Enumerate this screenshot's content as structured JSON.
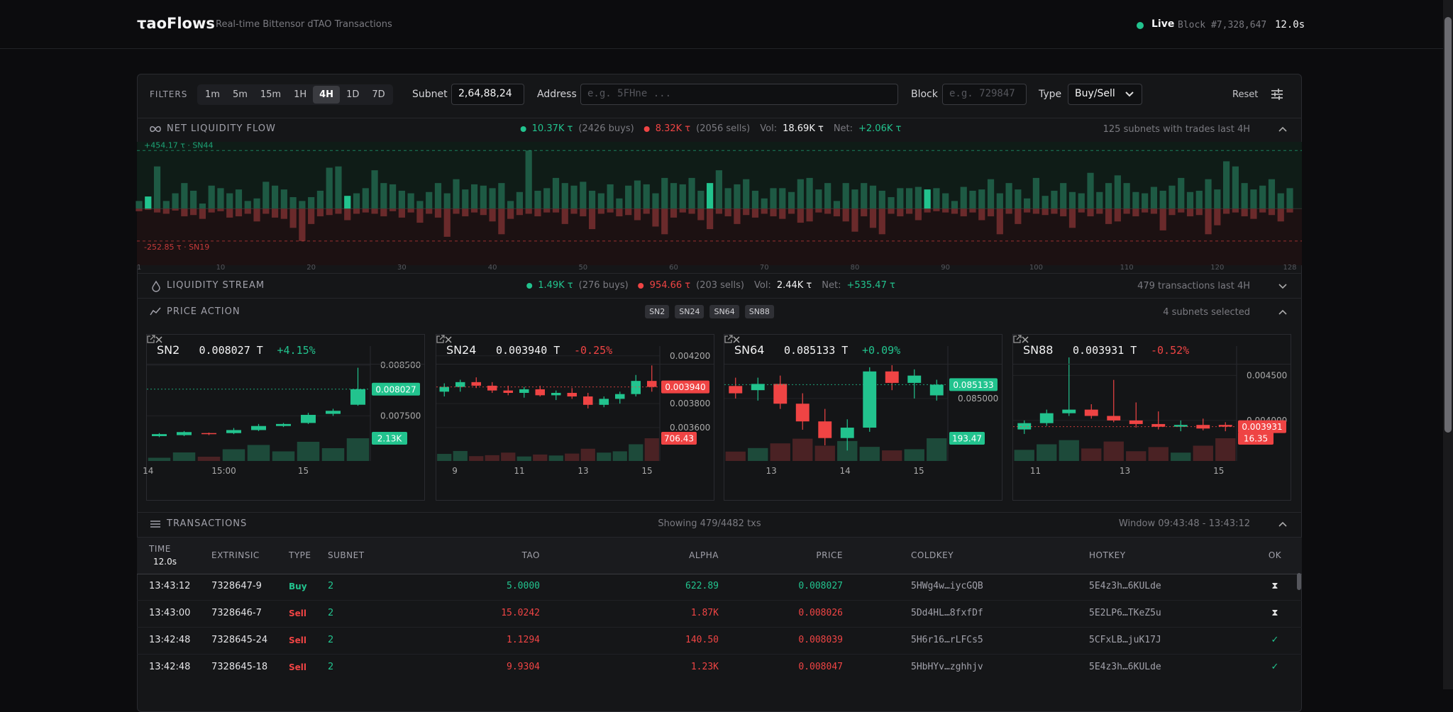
{
  "header": {
    "logo": "τaoFlows",
    "subtitle": "Real-time Bittensor dTAO Transactions",
    "status": "Live",
    "block": "Block #7,328,647",
    "timer": "12.0s"
  },
  "filters": {
    "label": "FILTERS",
    "ranges": [
      "1m",
      "5m",
      "15m",
      "1H",
      "4H",
      "1D",
      "7D"
    ],
    "active": "4H",
    "subnet_label": "Subnet",
    "subnet_value": "2,64,88,24",
    "address_label": "Address",
    "address_placeholder": "e.g. 5FHne ...",
    "block_label": "Block",
    "block_placeholder": "e.g. 729847",
    "type_label": "Type",
    "type_value": "Buy/Sell",
    "reset": "Reset"
  },
  "net_flow": {
    "title": "NET LIQUIDITY FLOW",
    "buys": "10.37K τ",
    "buys_count": "(2426 buys)",
    "sells": "8.32K τ",
    "sells_count": "(2056 sells)",
    "vol_label": "Vol:",
    "vol": "18.69K τ",
    "net_label": "Net:",
    "net": "+2.06K τ",
    "summary": "125 subnets with trades last 4H",
    "chart": {
      "type": "bar",
      "ylim": [
        -420,
        500
      ],
      "xlim": [
        1,
        128
      ],
      "xticks": [
        1,
        10,
        20,
        30,
        40,
        50,
        60,
        70,
        80,
        90,
        100,
        110,
        120,
        128
      ],
      "highlight": [
        2,
        24,
        64,
        88
      ],
      "buy_color": "#1e5a44",
      "highlight_color": "#22c38e",
      "sell_color": "#6a2a2b",
      "max": {
        "value": 454.17,
        "label": "+454.17 τ · SN44"
      },
      "min": {
        "value": -252.85,
        "label": "-252.85 τ · SN19"
      },
      "buys": [
        60,
        95,
        330,
        60,
        120,
        200,
        140,
        40,
        180,
        160,
        120,
        150,
        60,
        80,
        210,
        180,
        150,
        90,
        60,
        90,
        140,
        320,
        330,
        100,
        120,
        160,
        300,
        200,
        190,
        140,
        120,
        60,
        130,
        200,
        120,
        230,
        150,
        190,
        180,
        160,
        200,
        60,
        130,
        454.17,
        140,
        160,
        240,
        200,
        180,
        210,
        140,
        120,
        190,
        80,
        180,
        220,
        190,
        120,
        240,
        200,
        190,
        240,
        140,
        200,
        300,
        160,
        190,
        230,
        140,
        80,
        160,
        160,
        130,
        230,
        240,
        150,
        200,
        60,
        200,
        150,
        200,
        180,
        140,
        90,
        160,
        160,
        170,
        150,
        160,
        120,
        60,
        170,
        140,
        150,
        230,
        120,
        200,
        150,
        80,
        240,
        100,
        140,
        200,
        130,
        120,
        280,
        130,
        200,
        260,
        200,
        130,
        120,
        170,
        140,
        180,
        240,
        130,
        140,
        230,
        150,
        370,
        330,
        200,
        150,
        180,
        230,
        120,
        160
      ],
      "sells": [
        -20,
        -10,
        -30,
        -40,
        -15,
        -60,
        -50,
        -80,
        -30,
        -20,
        -70,
        -60,
        -40,
        -100,
        -40,
        -70,
        -80,
        -150,
        -252.85,
        -120,
        -60,
        -50,
        -40,
        -90,
        -40,
        -30,
        -40,
        -60,
        -20,
        -70,
        -30,
        -110,
        -40,
        -70,
        -220,
        -40,
        -60,
        -30,
        -50,
        -100,
        -200,
        -80,
        -50,
        -40,
        -60,
        -30,
        -30,
        -120,
        -40,
        -60,
        -160,
        -40,
        -30,
        -60,
        -50,
        -90,
        -40,
        -140,
        -200,
        -70,
        -30,
        -40,
        -90,
        -160,
        -40,
        -60,
        -120,
        -50,
        -70,
        -40,
        -60,
        -80,
        -40,
        -110,
        -100,
        -30,
        -40,
        -60,
        -100,
        -180,
        -60,
        -150,
        -200,
        -40,
        -60,
        -40,
        -90,
        -30,
        -20,
        -30,
        -40,
        -60,
        -30,
        -90,
        -60,
        -200,
        -40,
        -120,
        -30,
        -40,
        -50,
        -40,
        -60,
        -150,
        -30,
        -60,
        -40,
        -120,
        -100,
        -40,
        -60,
        -30,
        -40,
        -170,
        -50,
        -30,
        -60,
        -50,
        -200,
        -130,
        -40,
        -30,
        -60,
        -80,
        -30,
        -50,
        -100,
        -30
      ]
    }
  },
  "stream": {
    "title": "LIQUIDITY STREAM",
    "buys": "1.49K τ",
    "buys_count": "(276 buys)",
    "sells": "954.66 τ",
    "sells_count": "(203 sells)",
    "vol_label": "Vol:",
    "vol": "2.44K τ",
    "net_label": "Net:",
    "net": "+535.47 τ",
    "summary": "479 transactions last 4H"
  },
  "price_action": {
    "title": "PRICE ACTION",
    "chips": [
      "SN2",
      "SN24",
      "SN64",
      "SN88"
    ],
    "summary": "4 subnets selected",
    "cards": [
      {
        "type": "candlestick",
        "name": "SN2",
        "price": "0.008027 T",
        "change": "+4.15%",
        "color": "#22c38e",
        "ylim": [
          0.00661,
          0.00885
        ],
        "yticks": [
          {
            "value": 0.0085,
            "label": "0.008500"
          },
          {
            "value": 0.0075,
            "label": "0.007500"
          }
        ],
        "xlim": [
          0,
          9
        ],
        "xticks": [
          {
            "value": 0.05,
            "label": "14"
          },
          {
            "value": 3.1,
            "label": "15:00"
          },
          {
            "value": 6.3,
            "label": "15"
          }
        ],
        "last": {
          "value": 0.008027,
          "label": "0.008027"
        },
        "last_volume": {
          "value": 2130,
          "label": "2.13K"
        },
        "candles": [
          [
            0.0071,
            0.00716,
            0.00708,
            0.00714
          ],
          [
            0.00712,
            0.0072,
            0.0071,
            0.00718
          ],
          [
            0.00716,
            0.00717,
            0.00712,
            0.00714
          ],
          [
            0.00716,
            0.00726,
            0.00714,
            0.00722
          ],
          [
            0.00722,
            0.00734,
            0.0072,
            0.0073
          ],
          [
            0.0073,
            0.00736,
            0.00728,
            0.00734
          ],
          [
            0.00736,
            0.00756,
            0.00734,
            0.00752
          ],
          [
            0.00754,
            0.00764,
            0.0075,
            0.0076
          ],
          [
            0.00772,
            0.00845,
            0.0077,
            0.008027
          ]
        ],
        "volumes": [
          300,
          800,
          400,
          1100,
          1500,
          900,
          1800,
          1200,
          2130
        ]
      },
      {
        "type": "candlestick",
        "name": "SN24",
        "price": "0.003940 T",
        "change": "-0.25%",
        "color": "#ef4444",
        "ylim": [
          0.00332,
          0.00427
        ],
        "yticks": [
          {
            "value": 0.0042,
            "label": "0.004200"
          },
          {
            "value": 0.0038,
            "label": "0.003800"
          },
          {
            "value": 0.0036,
            "label": "0.003600"
          }
        ],
        "xlim": [
          0,
          14
        ],
        "xticks": [
          {
            "value": 1.16,
            "label": "9"
          },
          {
            "value": 5.2,
            "label": "11"
          },
          {
            "value": 9.2,
            "label": "13"
          },
          {
            "value": 13.2,
            "label": "15"
          }
        ],
        "last": {
          "value": 0.00394,
          "label": "0.003940"
        },
        "last_volume": 706.43,
        "candles": [
          [
            0.0039,
            0.00397,
            0.00386,
            0.00394
          ],
          [
            0.00394,
            0.004,
            0.0039,
            0.00398
          ],
          [
            0.00398,
            0.00402,
            0.00393,
            0.00395
          ],
          [
            0.00395,
            0.00398,
            0.00389,
            0.00391
          ],
          [
            0.00391,
            0.00395,
            0.00387,
            0.00389
          ],
          [
            0.00389,
            0.00394,
            0.00385,
            0.00392
          ],
          [
            0.00392,
            0.00395,
            0.00386,
            0.00387
          ],
          [
            0.00387,
            0.00391,
            0.00383,
            0.00389
          ],
          [
            0.00389,
            0.00393,
            0.00384,
            0.00386
          ],
          [
            0.00386,
            0.00389,
            0.00376,
            0.00379
          ],
          [
            0.00379,
            0.00386,
            0.00377,
            0.00384
          ],
          [
            0.00384,
            0.0039,
            0.0038,
            0.00388
          ],
          [
            0.00388,
            0.00404,
            0.00386,
            0.00399
          ],
          [
            0.00399,
            0.00412,
            0.0039,
            0.00394
          ]
        ],
        "volumes": [
          220,
          310,
          150,
          180,
          260,
          140,
          200,
          170,
          230,
          380,
          260,
          300,
          520,
          706.43
        ]
      },
      {
        "type": "candlestick",
        "name": "SN64",
        "price": "0.085133 T",
        "change": "+0.09%",
        "color": "#22c38e",
        "ylim": [
          0.0844,
          0.08549
        ],
        "yticks": [
          {
            "value": 0.085,
            "label": "0.085000"
          }
        ],
        "xlim": [
          0,
          10
        ],
        "xticks": [
          {
            "value": 2.1,
            "label": "13"
          },
          {
            "value": 5.4,
            "label": "14"
          },
          {
            "value": 8.7,
            "label": "15"
          }
        ],
        "last": {
          "value": 0.085133,
          "label": "0.085133"
        },
        "last_volume": 193.47,
        "candles": [
          [
            0.08512,
            0.0852,
            0.085,
            0.08505
          ],
          [
            0.08508,
            0.0852,
            0.08498,
            0.08514
          ],
          [
            0.08514,
            0.08522,
            0.0849,
            0.08495
          ],
          [
            0.08495,
            0.08505,
            0.0847,
            0.08478
          ],
          [
            0.08478,
            0.0849,
            0.08455,
            0.08462
          ],
          [
            0.08462,
            0.0848,
            0.0845,
            0.08472
          ],
          [
            0.08472,
            0.0853,
            0.08468,
            0.08526
          ],
          [
            0.08526,
            0.08532,
            0.08508,
            0.08515
          ],
          [
            0.08515,
            0.08528,
            0.085,
            0.08522
          ],
          [
            0.08503,
            0.08518,
            0.08498,
            0.085133
          ]
        ],
        "volumes": [
          80,
          110,
          150,
          190,
          130,
          170,
          120,
          90,
          100,
          193.47
        ]
      },
      {
        "type": "candlestick",
        "name": "SN88",
        "price": "0.003931 T",
        "change": "-0.52%",
        "color": "#ef4444",
        "ylim": [
          0.00355,
          0.00481
        ],
        "yticks": [
          {
            "value": 0.0045,
            "label": "0.004500"
          },
          {
            "value": 0.004,
            "label": "0.004000"
          }
        ],
        "xlim": [
          0,
          10
        ],
        "xticks": [
          {
            "value": 1.0,
            "label": "11"
          },
          {
            "value": 5.0,
            "label": "13"
          },
          {
            "value": 9.2,
            "label": "15"
          }
        ],
        "last": {
          "value": 0.003931,
          "label": "0.003931"
        },
        "last_volume": 16.35,
        "candles": [
          [
            0.0039,
            0.004,
            0.00385,
            0.00397
          ],
          [
            0.00397,
            0.00412,
            0.00394,
            0.00408
          ],
          [
            0.00408,
            0.0047,
            0.00405,
            0.00412
          ],
          [
            0.00412,
            0.00418,
            0.00402,
            0.00405
          ],
          [
            0.00405,
            0.00445,
            0.00398,
            0.004
          ],
          [
            0.004,
            0.0042,
            0.00392,
            0.00396
          ],
          [
            0.00396,
            0.0041,
            0.0039,
            0.00393
          ],
          [
            0.00393,
            0.004,
            0.00388,
            0.00395
          ],
          [
            0.00395,
            0.00402,
            0.00389,
            0.00391
          ],
          [
            0.00395,
            0.00398,
            0.00388,
            0.003931
          ]
        ],
        "volumes": [
          8,
          12,
          15,
          9,
          14,
          7,
          10,
          6,
          11,
          16.35
        ]
      }
    ]
  },
  "transactions": {
    "title": "TRANSACTIONS",
    "showing": "Showing 479/4482 txs",
    "window": "Window 09:43:48 - 13:43:12",
    "columns": [
      "TIME",
      "EXTRINSIC",
      "TYPE",
      "SUBNET",
      "TAO",
      "ALPHA",
      "PRICE",
      "COLDKEY",
      "HOTKEY",
      "OK"
    ],
    "time_sub": "12.0s",
    "rows": [
      {
        "cells": [
          "13:43:12",
          "7328647-9",
          "Buy",
          "2",
          "5.0000",
          "622.89",
          "0.008027",
          "5HWg4w…iycGQB",
          "5E4z3h…6KULde",
          "⧗"
        ],
        "color": "#22c38e",
        "ok_color": "#e5e5e5"
      },
      {
        "cells": [
          "13:43:00",
          "7328646-7",
          "Sell",
          "2",
          "15.0242",
          "1.87K",
          "0.008026",
          "5Dd4HL…8fxfDf",
          "5E2LP6…TKeZ5u",
          "⧗"
        ],
        "color": "#ef4444",
        "ok_color": "#e5e5e5"
      },
      {
        "cells": [
          "13:42:48",
          "7328645-24",
          "Sell",
          "2",
          "1.1294",
          "140.50",
          "0.008039",
          "5H6r16…rLFCs5",
          "5CFxLB…juK17J",
          "✓"
        ],
        "color": "#ef4444",
        "ok_color": "#22c38e"
      },
      {
        "cells": [
          "13:42:48",
          "7328645-18",
          "Sell",
          "2",
          "9.9304",
          "1.23K",
          "0.008047",
          "5HbHYv…zghhjv",
          "5E4z3h…6KULde",
          "✓"
        ],
        "color": "#ef4444",
        "ok_color": "#22c38e"
      }
    ]
  }
}
